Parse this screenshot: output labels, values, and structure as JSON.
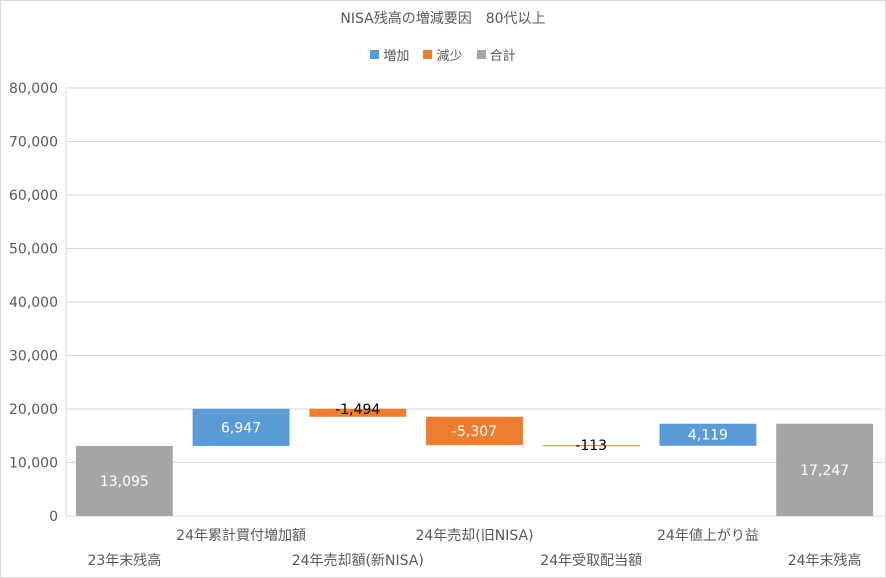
{
  "chart_data": {
    "type": "waterfall",
    "title": "NISA残高の増減要因　80代以上",
    "legend": {
      "placement": "top",
      "items": [
        {
          "label": "増加",
          "color": "#5b9bd5"
        },
        {
          "label": "減少",
          "color": "#ed7d31"
        },
        {
          "label": "合計",
          "color": "#a5a5a5"
        }
      ]
    },
    "ylim": [
      0,
      80000
    ],
    "yticks": [
      0,
      10000,
      20000,
      30000,
      40000,
      50000,
      60000,
      70000,
      80000
    ],
    "ytick_labels": [
      "0",
      "10,000",
      "20,000",
      "30,000",
      "40,000",
      "50,000",
      "60,000",
      "70,000",
      "80,000"
    ],
    "grid": true,
    "categories": [
      "23年末残高",
      "24年累計買付増加額",
      "24年売却額(新NISA)",
      "24年売却(旧NISA)",
      "24年受取配当額",
      "24年値上がり益",
      "24年末残高"
    ],
    "values": [
      13095,
      6947,
      -1494,
      -5307,
      -113,
      4119,
      17247
    ],
    "kinds": [
      "total",
      "increase",
      "decrease",
      "decrease",
      "decrease",
      "increase",
      "total"
    ],
    "value_labels": [
      "13,095",
      "6,947",
      "-1,494",
      "-5,307",
      "-113",
      "4,119",
      "17,247"
    ]
  }
}
